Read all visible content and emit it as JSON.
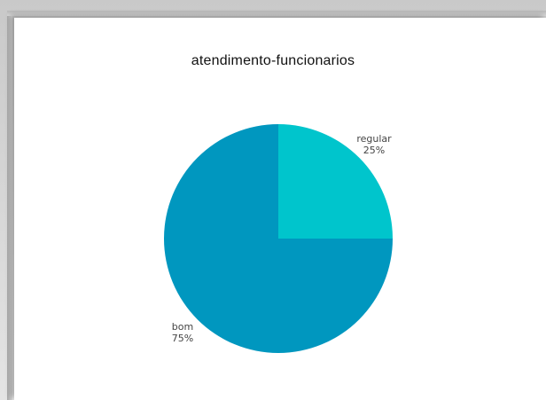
{
  "chart_data": {
    "type": "pie",
    "title": "atendimento-funcionarios",
    "slices": [
      {
        "label": "regular",
        "value": 25,
        "percent_label": "25%",
        "color": "#00c5cc"
      },
      {
        "label": "bom",
        "value": 75,
        "percent_label": "75%",
        "color": "#0097bf"
      }
    ],
    "legend": "none"
  }
}
